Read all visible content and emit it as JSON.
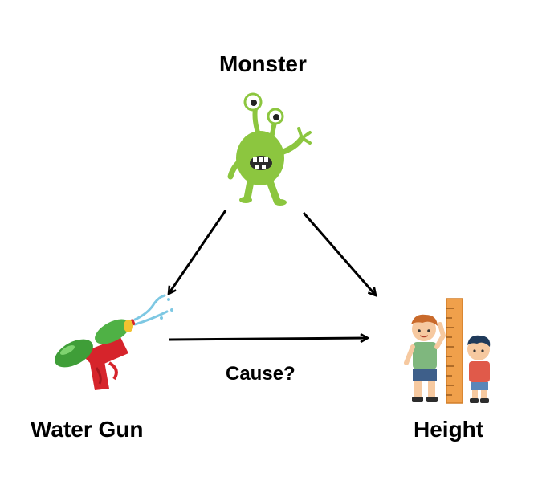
{
  "nodes": {
    "monster": {
      "label": "Monster",
      "icon": "monster-icon"
    },
    "water_gun": {
      "label": "Water Gun",
      "icon": "water-gun-icon"
    },
    "height": {
      "label": "Height",
      "icon": "height-chart-icon"
    }
  },
  "edges": [
    {
      "from": "monster",
      "to": "water_gun",
      "label": ""
    },
    {
      "from": "monster",
      "to": "height",
      "label": ""
    },
    {
      "from": "water_gun",
      "to": "height",
      "label": "Cause?"
    }
  ],
  "colors": {
    "monster_green": "#8cc63f",
    "gun_green": "#3f9e38",
    "gun_red": "#d6242b",
    "ruler_orange": "#f0a04b",
    "arrow": "#000000"
  }
}
